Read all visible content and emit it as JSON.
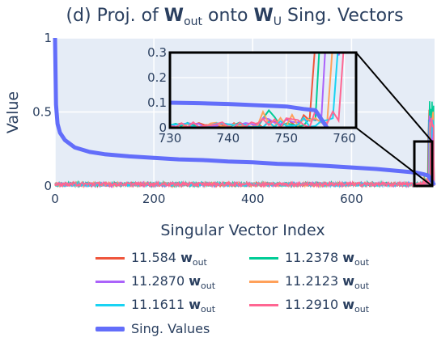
{
  "chart_data": {
    "type": "line",
    "title": {
      "prefix": "(d) Proj. of ",
      "sym1": "W",
      "sub1": "out",
      "middle": " onto ",
      "sym2": "W",
      "sub2": "U",
      "suffix": " Sing. Vectors"
    },
    "xlabel": "Singular Vector Index",
    "ylabel": "Value",
    "xlim": [
      0,
      768
    ],
    "ylim": [
      0,
      1
    ],
    "x_ticks": [
      0,
      200,
      400,
      600
    ],
    "y_ticks": [
      0,
      0.5,
      1
    ],
    "y_tick_labels": [
      "0",
      "0.5",
      "1"
    ],
    "grid": true,
    "background": "#e5ecf6",
    "series": [
      {
        "name": "11.584",
        "color": "#ef553b",
        "noise": 0.01,
        "spike_at": 755,
        "spike": 0.55
      },
      {
        "name": "11.2378",
        "color": "#00cc96",
        "noise": 0.012,
        "spike_at": 756,
        "spike": 0.6
      },
      {
        "name": "11.2870",
        "color": "#ab63fa",
        "noise": 0.01,
        "spike_at": 757,
        "spike": 0.48
      },
      {
        "name": "11.2123",
        "color": "#ffa15a",
        "noise": 0.01,
        "spike_at": 758,
        "spike": 0.52
      },
      {
        "name": "11.1611",
        "color": "#19d3f3",
        "noise": 0.01,
        "spike_at": 759,
        "spike": 0.45
      },
      {
        "name": "11.2910",
        "color": "#ff6692",
        "noise": 0.012,
        "spike_at": 760,
        "spike": 0.58
      }
    ],
    "sing_values": {
      "name": "Sing. Values",
      "color": "#636efa",
      "x": [
        0,
        2,
        5,
        10,
        20,
        40,
        70,
        100,
        150,
        200,
        250,
        300,
        350,
        400,
        450,
        500,
        550,
        600,
        650,
        700,
        730,
        745,
        755,
        760,
        765,
        767
      ],
      "y": [
        1.0,
        0.55,
        0.42,
        0.36,
        0.31,
        0.26,
        0.23,
        0.215,
        0.2,
        0.19,
        0.18,
        0.175,
        0.165,
        0.16,
        0.15,
        0.145,
        0.135,
        0.125,
        0.115,
        0.1,
        0.09,
        0.08,
        0.07,
        0.045,
        0.02,
        0.005
      ]
    },
    "inset": {
      "xlim": [
        730,
        762
      ],
      "ylim": [
        0,
        0.3
      ],
      "x_ticks": [
        730,
        740,
        750,
        760
      ],
      "y_ticks": [
        0,
        0.1,
        0.2,
        0.3
      ],
      "y_tick_labels": [
        "0",
        "0.1",
        "0.2",
        "0.3"
      ],
      "sing_values": {
        "x": [
          730,
          735,
          740,
          745,
          750,
          753,
          755,
          757
        ],
        "y": [
          0.1,
          0.098,
          0.095,
          0.09,
          0.085,
          0.075,
          0.07,
          0.0
        ]
      }
    },
    "legend_suffix": {
      "sym": "w",
      "sub": "out"
    }
  }
}
